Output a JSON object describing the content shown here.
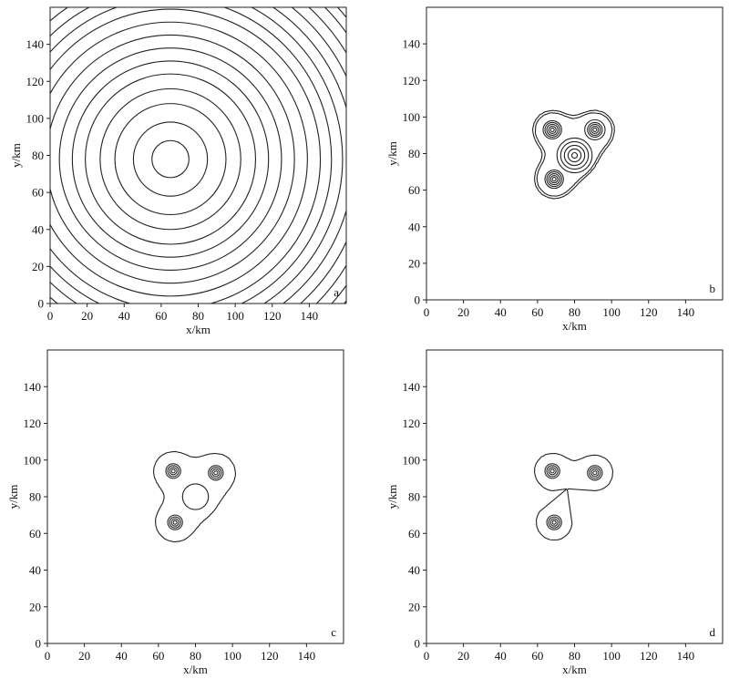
{
  "chart_data": [
    {
      "panel": "a",
      "type": "contour",
      "xlabel": "x/km",
      "ylabel": "y/km",
      "xlim": [
        0,
        160
      ],
      "ylim": [
        0,
        160
      ],
      "xticks": [
        0,
        20,
        40,
        60,
        80,
        100,
        120,
        140
      ],
      "yticks": [
        0,
        20,
        40,
        60,
        80,
        100,
        120,
        140
      ],
      "sources": [
        {
          "x": 65,
          "y": 78,
          "radii_km": [
            10,
            20,
            30,
            38,
            46,
            53,
            60,
            67,
            74,
            81,
            87,
            93,
            99,
            105,
            111,
            117,
            122,
            127,
            132,
            137,
            142,
            147
          ]
        }
      ]
    },
    {
      "panel": "b",
      "type": "contour",
      "xlabel": "x/km",
      "ylabel": "y/km",
      "xlim": [
        0,
        160
      ],
      "ylim": [
        0,
        160
      ],
      "xticks": [
        0,
        20,
        40,
        60,
        80,
        100,
        120,
        140
      ],
      "yticks": [
        0,
        20,
        40,
        60,
        80,
        100,
        120,
        140
      ],
      "sources": [
        {
          "x": 80,
          "y": 79,
          "radii_km": [
            1.5,
            3.5,
            5.5,
            7.5,
            9.5
          ]
        },
        {
          "x": 68,
          "y": 93,
          "radii_km": [
            1,
            2,
            3,
            4,
            5
          ]
        },
        {
          "x": 91,
          "y": 93,
          "radii_km": [
            1,
            2,
            3,
            4,
            5.5
          ]
        },
        {
          "x": 69,
          "y": 66,
          "radii_km": [
            1,
            2,
            3,
            4,
            5
          ]
        }
      ],
      "envelope_levels_km": [
        12,
        13.5
      ]
    },
    {
      "panel": "c",
      "type": "contour",
      "xlabel": "x/km",
      "ylabel": "y/km",
      "xlim": [
        0,
        160
      ],
      "ylim": [
        0,
        160
      ],
      "xticks": [
        0,
        20,
        40,
        60,
        80,
        100,
        120,
        140
      ],
      "yticks": [
        0,
        20,
        40,
        60,
        80,
        100,
        120,
        140
      ],
      "sources": [
        {
          "x": 80,
          "y": 80,
          "radii_km": [
            7
          ]
        },
        {
          "x": 68,
          "y": 94,
          "radii_km": [
            1,
            2,
            3,
            4
          ]
        },
        {
          "x": 91,
          "y": 93,
          "radii_km": [
            1,
            2,
            3,
            4
          ]
        },
        {
          "x": 69,
          "y": 66,
          "radii_km": [
            1,
            2,
            3,
            4
          ]
        }
      ],
      "envelope_levels_km": [
        13.5
      ]
    },
    {
      "panel": "d",
      "type": "contour",
      "xlabel": "x/km",
      "ylabel": "y/km",
      "xlim": [
        0,
        160
      ],
      "ylim": [
        0,
        160
      ],
      "xticks": [
        0,
        20,
        40,
        60,
        80,
        100,
        120,
        140
      ],
      "yticks": [
        0,
        20,
        40,
        60,
        80,
        100,
        120,
        140
      ],
      "sources": [
        {
          "x": 68,
          "y": 94,
          "radii_km": [
            1,
            2,
            3,
            4
          ]
        },
        {
          "x": 91,
          "y": 93,
          "radii_km": [
            1,
            2,
            3,
            4
          ]
        },
        {
          "x": 69,
          "y": 66,
          "radii_km": [
            1,
            2,
            3,
            4
          ]
        }
      ],
      "envelope_levels_km": [
        12.5
      ]
    }
  ]
}
